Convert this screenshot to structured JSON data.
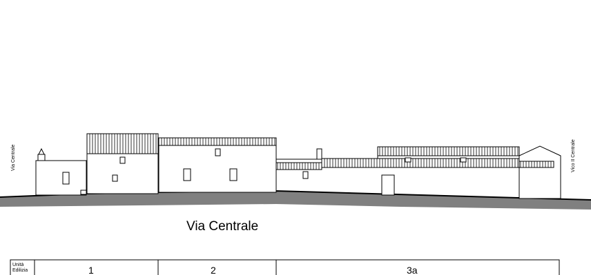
{
  "street_label": "Via Centrale",
  "left_side_label": "Via Centrale",
  "right_side_label": "Vico II Centrale",
  "table": {
    "header_line1": "Unità",
    "header_line2": "Edilizia",
    "units": [
      "1",
      "2",
      "3a"
    ]
  },
  "colors": {
    "ground": "#808080",
    "line": "#000000",
    "background": "#ffffff"
  }
}
